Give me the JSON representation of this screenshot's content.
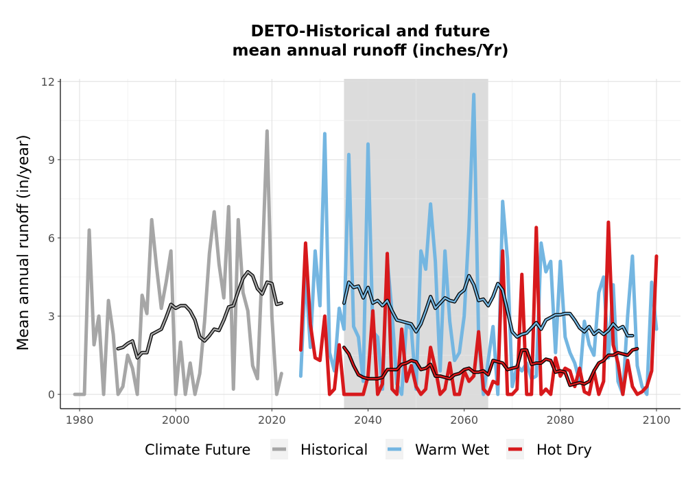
{
  "chart_data": {
    "type": "line",
    "title": "DETO-Historical and future",
    "subtitle": "mean annual runoff (inches/Yr)",
    "xlabel": "",
    "ylabel": "Mean annual runoff (in/year)",
    "xlim": [
      1976,
      2105
    ],
    "ylim": [
      -0.55,
      12.1
    ],
    "x_ticks": [
      1980,
      2000,
      2020,
      2040,
      2060,
      2080,
      2100
    ],
    "y_ticks": [
      0,
      3,
      6,
      9,
      12
    ],
    "grid": true,
    "shaded_period": [
      2035,
      2065
    ],
    "legend": {
      "title": "Climate Future",
      "position": "bottom"
    },
    "series": [
      {
        "name": "Historical",
        "color": "#A6A6A6",
        "x_start": 1979,
        "values": [
          0,
          0,
          0,
          6.3,
          1.9,
          3,
          0,
          3.6,
          2.3,
          0,
          0.3,
          1.5,
          1,
          0,
          3.8,
          3.1,
          6.7,
          4.9,
          3.3,
          4.3,
          5.5,
          0,
          2,
          0,
          1.2,
          0,
          0.8,
          2.8,
          5.4,
          7,
          5,
          3.7,
          7.2,
          0.2,
          6.7,
          3.9,
          3.2,
          1.1,
          0.6,
          5,
          10.1,
          3,
          0,
          0.8
        ]
      },
      {
        "name": "Historical (10-yr mean)",
        "color": "#A6A6A6",
        "x_start": 1988,
        "values": [
          1.75,
          1.8,
          1.95,
          2.05,
          1.4,
          1.6,
          1.6,
          2.3,
          2.4,
          2.5,
          2.95,
          3.45,
          3.3,
          3.4,
          3.4,
          3.2,
          2.85,
          2.2,
          2.05,
          2.25,
          2.5,
          2.45,
          2.85,
          3.35,
          3.4,
          3.95,
          4.45,
          4.7,
          4.55,
          4.05,
          3.85,
          4.3,
          4.25,
          3.45,
          3.5
        ]
      },
      {
        "name": "Warm Wet",
        "color": "#74B6E1",
        "x_start": 2026,
        "values": [
          0.7,
          4.7,
          1.8,
          5.5,
          3.4,
          10,
          1.6,
          0.9,
          3.3,
          2.5,
          9.2,
          2.6,
          2.2,
          0.5,
          9.6,
          2.4,
          2.2,
          0.2,
          5.2,
          3.1,
          0.4,
          0,
          2.7,
          2.5,
          0.2,
          5.5,
          4.8,
          7.3,
          5.1,
          0.9,
          5.5,
          2.8,
          1.3,
          1.6,
          3,
          6.4,
          11.5,
          2.2,
          0,
          1.3,
          2.6,
          0,
          7.4,
          5.2,
          0.3,
          1.1,
          0.9,
          1.2,
          0.6,
          0.7,
          5.8,
          4.7,
          5.1,
          1.6,
          5.1,
          2.2,
          1.6,
          1.2,
          0.5,
          2.8,
          1.9,
          1.5,
          3.9,
          4.5,
          1.4,
          4.2,
          0.5,
          0,
          3,
          5.3,
          1.1,
          0.3,
          0,
          4.3,
          2.5
        ]
      },
      {
        "name": "Warm Wet (10-yr mean)",
        "color": "#74B6E1",
        "x_start": 2035,
        "values": [
          3.5,
          4.3,
          4.1,
          4.15,
          3.7,
          4.1,
          3.5,
          3.6,
          3.4,
          3.6,
          3.2,
          2.85,
          2.8,
          2.75,
          2.7,
          2.4,
          2.7,
          3.2,
          3.75,
          3.3,
          3.5,
          3.7,
          3.6,
          3.55,
          3.85,
          4,
          4.55,
          4.2,
          3.6,
          3.65,
          3.4,
          3.75,
          4.25,
          4,
          3.2,
          2.4,
          2.2,
          2.3,
          2.35,
          2.55,
          2.75,
          2.5,
          2.85,
          2.95,
          3.05,
          3.05,
          3.1,
          3.1,
          2.85,
          2.55,
          2.4,
          2.6,
          2.3,
          2.45,
          2.3,
          2.45,
          2.7,
          2.5,
          2.6,
          2.25,
          2.25
        ]
      },
      {
        "name": "Hot Dry",
        "color": "#D7191C",
        "x_start": 2026,
        "values": [
          1.7,
          5.8,
          2.7,
          1.4,
          1.3,
          3,
          0,
          0.2,
          1.9,
          0,
          0,
          0,
          0,
          0,
          0.7,
          3.2,
          0,
          0.4,
          5.4,
          0.2,
          0,
          2.5,
          0.5,
          1.1,
          0.3,
          0,
          0.2,
          1.8,
          1,
          0,
          0.2,
          1.2,
          0,
          0,
          0.9,
          0.5,
          0.7,
          2.4,
          0.2,
          0,
          0.5,
          0.4,
          5.5,
          0,
          0,
          0.2,
          4.6,
          0,
          0,
          6.4,
          0,
          0.2,
          0,
          1.4,
          0.7,
          1,
          0.9,
          0.3,
          1,
          0.1,
          0,
          0.9,
          0,
          0.5,
          6.6,
          1.9,
          1.2,
          0,
          1.3,
          0.3,
          0,
          0.1,
          0.3,
          0.9,
          5.3
        ]
      },
      {
        "name": "Hot Dry (10-yr mean)",
        "color": "#D7191C",
        "x_start": 2035,
        "values": [
          1.8,
          1.55,
          1.1,
          0.75,
          0.65,
          0.6,
          0.6,
          0.6,
          0.65,
          0.95,
          0.95,
          0.95,
          1.15,
          1.2,
          1.3,
          1.25,
          0.95,
          1,
          1.15,
          0.7,
          0.7,
          0.65,
          0.6,
          0.75,
          0.8,
          0.95,
          1,
          0.85,
          0.85,
          0.9,
          0.75,
          1.3,
          1.25,
          1.2,
          0.95,
          1,
          1.05,
          1.7,
          1.7,
          1.15,
          1.2,
          1.2,
          1.35,
          1.3,
          0.85,
          0.9,
          0.85,
          0.35,
          0.4,
          0.45,
          0.4,
          0.5,
          0.9,
          1.2,
          1.3,
          1.5,
          1.5,
          1.6,
          1.55,
          1.5,
          1.7,
          1.75
        ]
      }
    ]
  }
}
